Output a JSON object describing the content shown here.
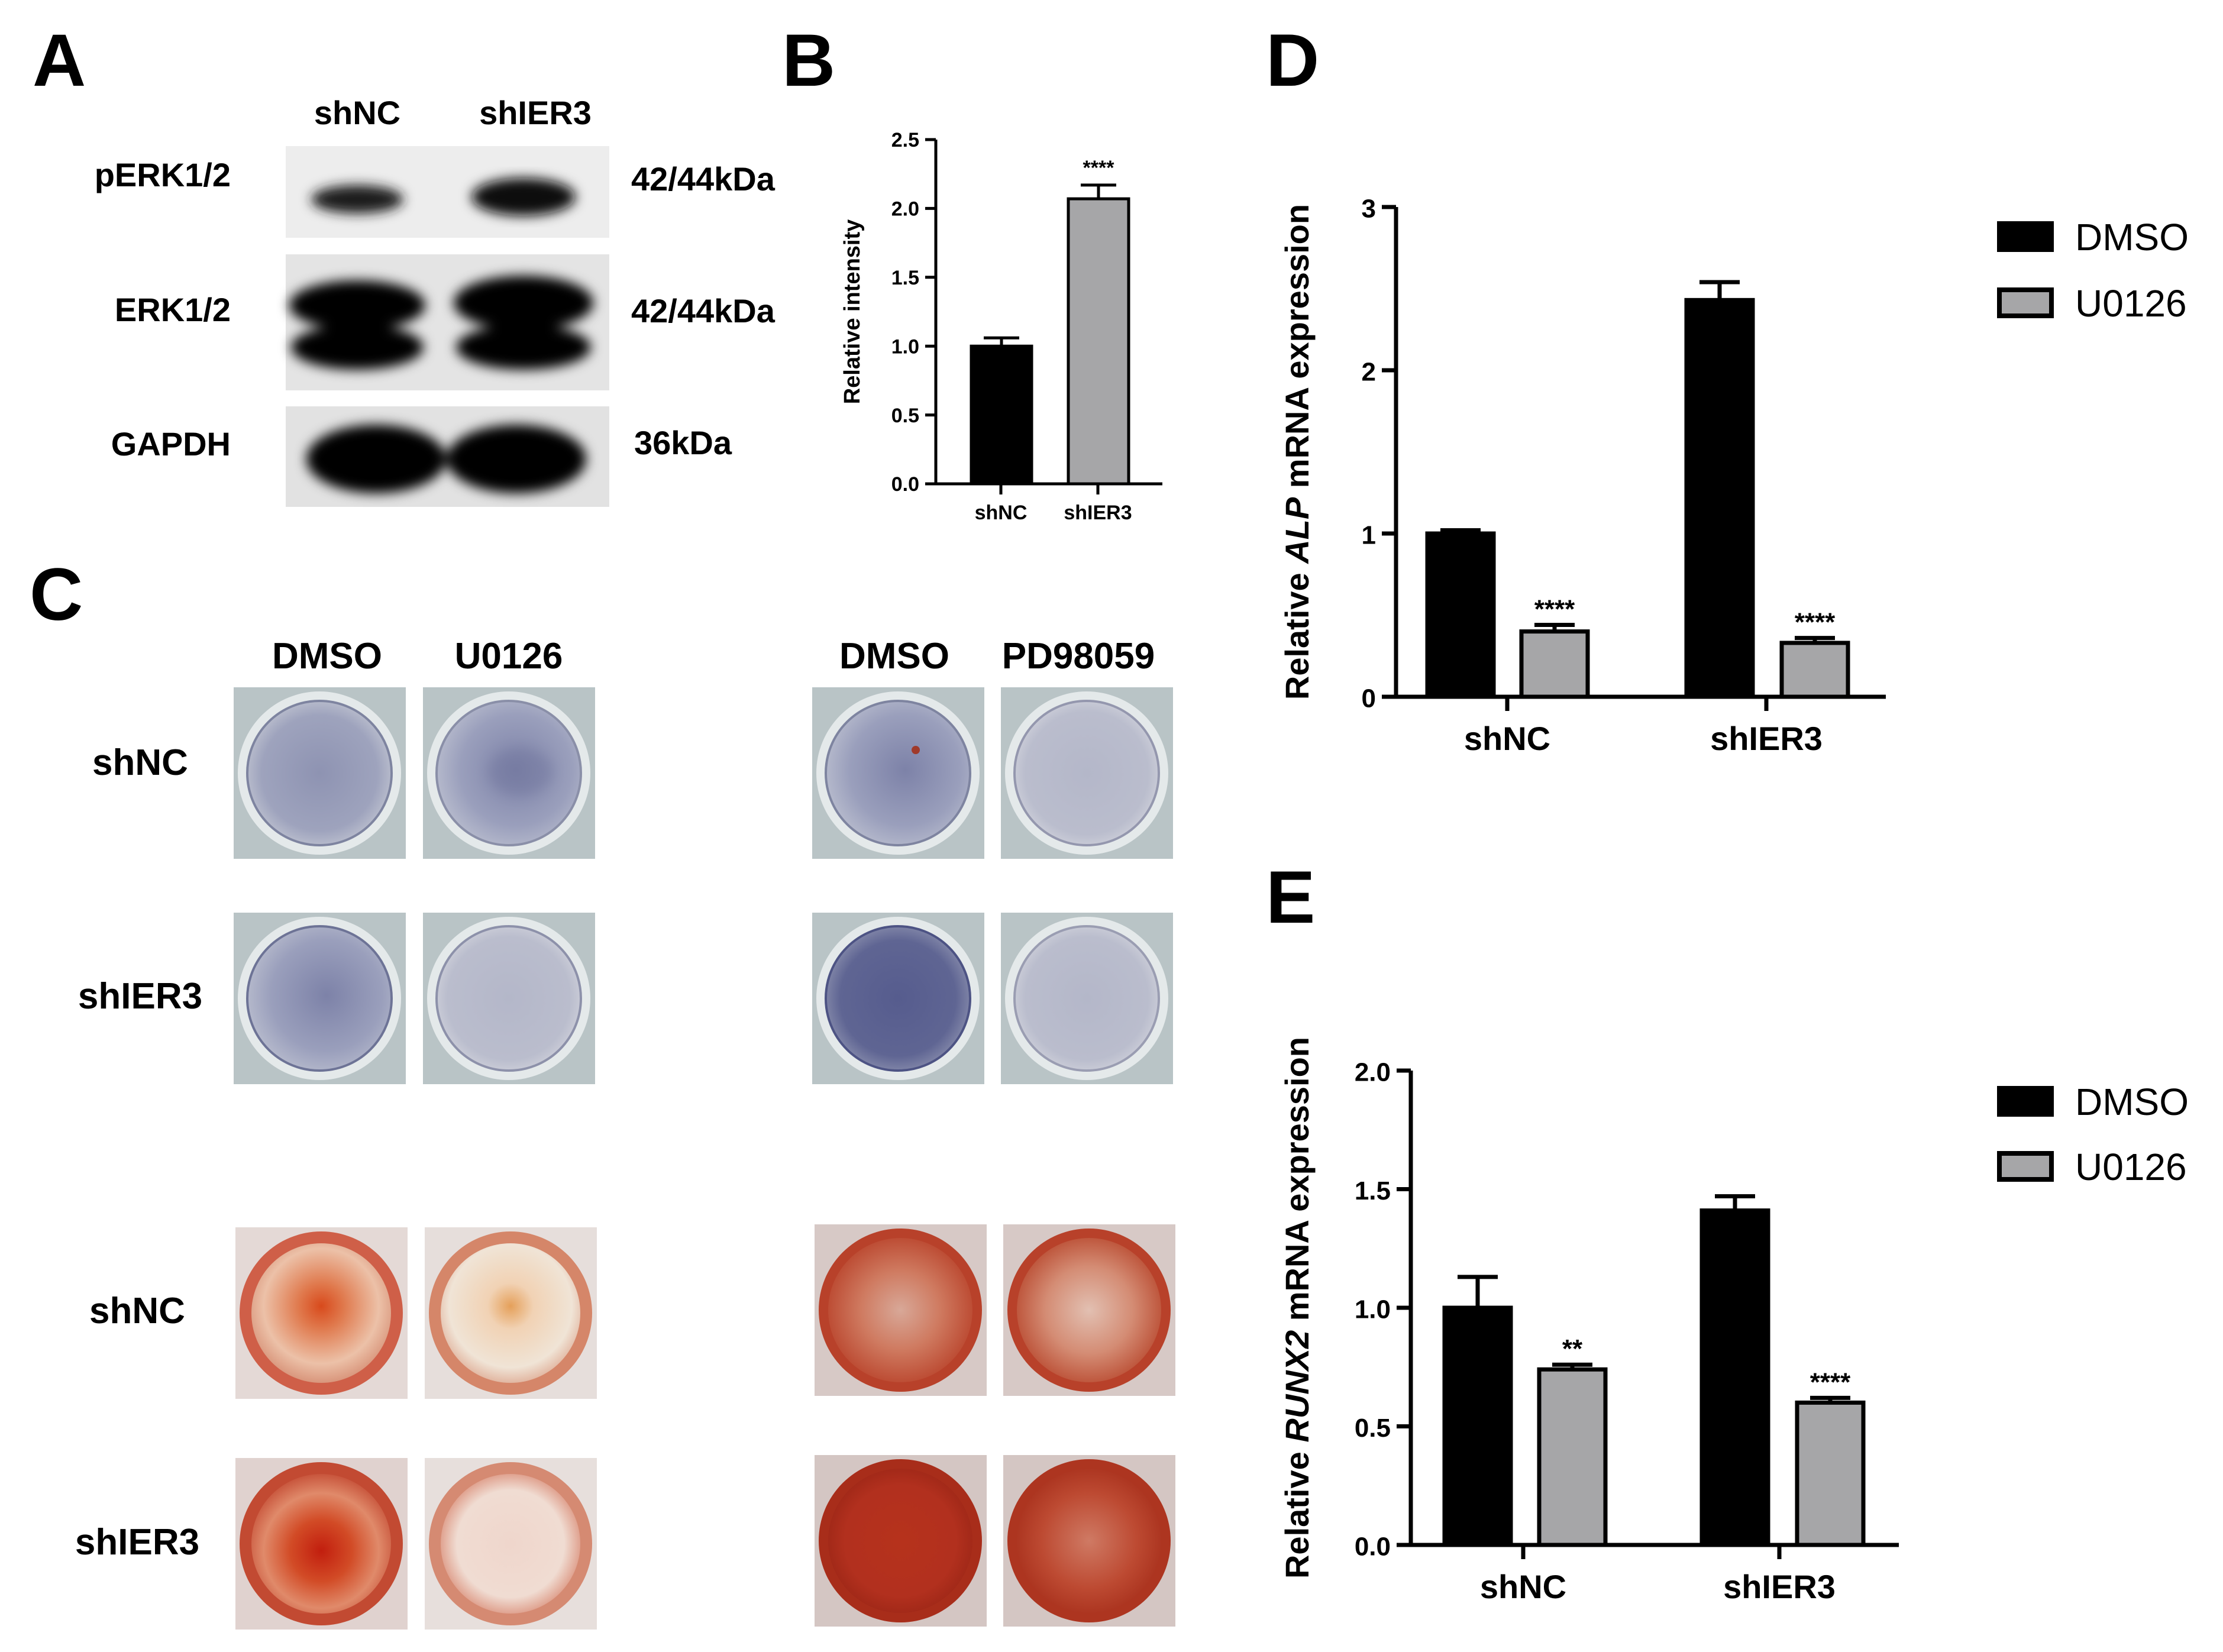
{
  "panels": {
    "A": "A",
    "B": "B",
    "C": "C",
    "D": "D",
    "E": "E"
  },
  "colors": {
    "dmso": "#000000",
    "u0126": "#a6a6a8",
    "alp_blue": "#4a5288",
    "ars_red": "#b83a2a"
  },
  "blot": {
    "lanes": [
      "shNC",
      "shIER3"
    ],
    "rows": [
      {
        "protein": "pERK1/2",
        "size": "42/44kDa"
      },
      {
        "protein": "ERK1/2",
        "size": "42/44kDa"
      },
      {
        "protein": "GAPDH",
        "size": "36kDa"
      }
    ]
  },
  "staining": {
    "left_headers": [
      "DMSO",
      "U0126"
    ],
    "right_headers": [
      "DMSO",
      "PD98059"
    ],
    "rows": [
      "shNC",
      "shIER3",
      "shNC",
      "shIER3"
    ]
  },
  "chart_data": [
    {
      "panel": "B",
      "type": "bar",
      "categories": [
        "shNC",
        "shIER3"
      ],
      "values": [
        1.0,
        2.07
      ],
      "errors": [
        0.06,
        0.1
      ],
      "significance": [
        "",
        "****"
      ],
      "ylabel": "Relative intensity",
      "ylim": [
        0,
        2.5
      ],
      "yticks": [
        "0.0",
        "0.5",
        "1.0",
        "1.5",
        "2.0",
        "2.5"
      ],
      "bar_colors": [
        "#000000",
        "#a6a6a8"
      ]
    },
    {
      "panel": "D",
      "type": "bar",
      "categories": [
        "shNC",
        "shIER3"
      ],
      "series": [
        {
          "name": "DMSO",
          "values": [
            1.0,
            2.43
          ],
          "errors": [
            0.02,
            0.11
          ],
          "significance": [
            "",
            ""
          ]
        },
        {
          "name": "U0126",
          "values": [
            0.4,
            0.33
          ],
          "errors": [
            0.04,
            0.03
          ],
          "significance": [
            "****",
            "****"
          ]
        }
      ],
      "ylabel_pre": "Relative ",
      "ylabel_ital": "ALP",
      "ylabel_post": " mRNA expression",
      "ylim": [
        0,
        3
      ],
      "yticks": [
        "0",
        "1",
        "2",
        "3"
      ],
      "legend": "right"
    },
    {
      "panel": "E",
      "type": "bar",
      "categories": [
        "shNC",
        "shIER3"
      ],
      "series": [
        {
          "name": "DMSO",
          "values": [
            1.0,
            1.41
          ],
          "errors": [
            0.13,
            0.06
          ],
          "significance": [
            "",
            ""
          ]
        },
        {
          "name": "U0126",
          "values": [
            0.74,
            0.6
          ],
          "errors": [
            0.02,
            0.02
          ],
          "significance": [
            "**",
            "****"
          ]
        }
      ],
      "ylabel_pre": "Relative ",
      "ylabel_ital": "RUNX2",
      "ylabel_post": " mRNA expression",
      "ylim": [
        0,
        2
      ],
      "yticks": [
        "0.0",
        "0.5",
        "1.0",
        "1.5",
        "2.0"
      ],
      "legend": "right"
    }
  ]
}
